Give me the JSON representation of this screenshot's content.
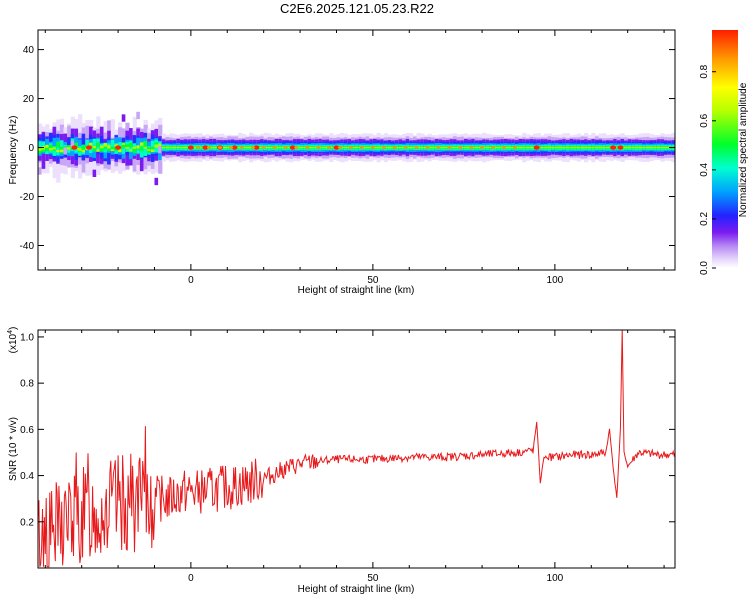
{
  "title": "C2E6.2025.121.05.23.R22",
  "chart_data": [
    {
      "type": "heatmap",
      "xlabel": "Height of straight line (km)",
      "ylabel": "Frequency (Hz)",
      "xlim": [
        -42,
        133
      ],
      "ylim": [
        -50,
        48
      ],
      "x_ticks": [
        0,
        50,
        100
      ],
      "x_tick_labels": [
        "0",
        "50",
        "100"
      ],
      "y_ticks": [
        -40,
        -20,
        0,
        20,
        40
      ],
      "y_tick_labels": [
        "-40",
        "-20",
        "0",
        "20",
        "40"
      ],
      "description_values": {
        "band_center_hz": 0,
        "band_halfwidth_hz_left": 6,
        "band_halfwidth_hz_right": 4
      },
      "colorbar": {
        "label": "Normalized spectral amplitude",
        "ticks": [
          0.0,
          0.2,
          0.4,
          0.6,
          0.8
        ],
        "tick_labels": [
          "0.0",
          "0.2",
          "0.4",
          "0.6",
          "0.8"
        ],
        "range": [
          0,
          0.97
        ],
        "colors": [
          "#ffffff",
          "#c9a6f5",
          "#7a1cf0",
          "#2222ff",
          "#00b7ff",
          "#00ffcc",
          "#00ff33",
          "#a6ff00",
          "#ffff00",
          "#ff9900",
          "#ff2200"
        ]
      },
      "hot_spots_x": [
        -32,
        -28,
        -20,
        0,
        4,
        8,
        12,
        18,
        28,
        40,
        95,
        116,
        118
      ]
    },
    {
      "type": "line",
      "xlabel": "Height of straight line (km)",
      "ylabel": "SNR (10 * v/v)",
      "scale_label": "(x10",
      "scale_exp": "4",
      "scale_close": ")",
      "xlim": [
        -42,
        133
      ],
      "ylim": [
        0,
        1.03
      ],
      "x_ticks": [
        0,
        50,
        100
      ],
      "x_tick_labels": [
        "0",
        "50",
        "100"
      ],
      "y_ticks": [
        0.2,
        0.4,
        0.6,
        0.8,
        1.0
      ],
      "y_tick_labels": [
        "0.2",
        "0.4",
        "0.6",
        "0.8",
        "1.0"
      ],
      "series": [
        {
          "color": "#e8191b",
          "points": [
            [
              -42,
              0.12
            ],
            [
              -38,
              0.15
            ],
            [
              -34,
              0.2
            ],
            [
              -30,
              0.22
            ],
            [
              -26,
              0.24
            ],
            [
              -22,
              0.26
            ],
            [
              -18,
              0.28
            ],
            [
              -14,
              0.27
            ],
            [
              -10,
              0.3
            ],
            [
              -6,
              0.3
            ],
            [
              -2,
              0.33
            ],
            [
              2,
              0.33
            ],
            [
              6,
              0.34
            ],
            [
              10,
              0.35
            ],
            [
              14,
              0.36
            ],
            [
              18,
              0.38
            ],
            [
              22,
              0.4
            ],
            [
              26,
              0.43
            ],
            [
              30,
              0.45
            ],
            [
              34,
              0.46
            ],
            [
              40,
              0.47
            ],
            [
              50,
              0.47
            ],
            [
              60,
              0.48
            ],
            [
              70,
              0.48
            ],
            [
              80,
              0.49
            ],
            [
              90,
              0.5
            ],
            [
              94,
              0.51
            ],
            [
              95,
              0.63
            ],
            [
              96,
              0.37
            ],
            [
              97,
              0.48
            ],
            [
              100,
              0.48
            ],
            [
              105,
              0.49
            ],
            [
              110,
              0.49
            ],
            [
              114,
              0.5
            ],
            [
              115,
              0.6
            ],
            [
              116,
              0.44
            ],
            [
              117,
              0.3
            ],
            [
              118,
              0.6
            ],
            [
              118.5,
              1.03
            ],
            [
              119,
              0.5
            ],
            [
              120,
              0.44
            ],
            [
              123,
              0.5
            ],
            [
              128,
              0.49
            ],
            [
              133,
              0.49
            ]
          ]
        }
      ]
    }
  ]
}
